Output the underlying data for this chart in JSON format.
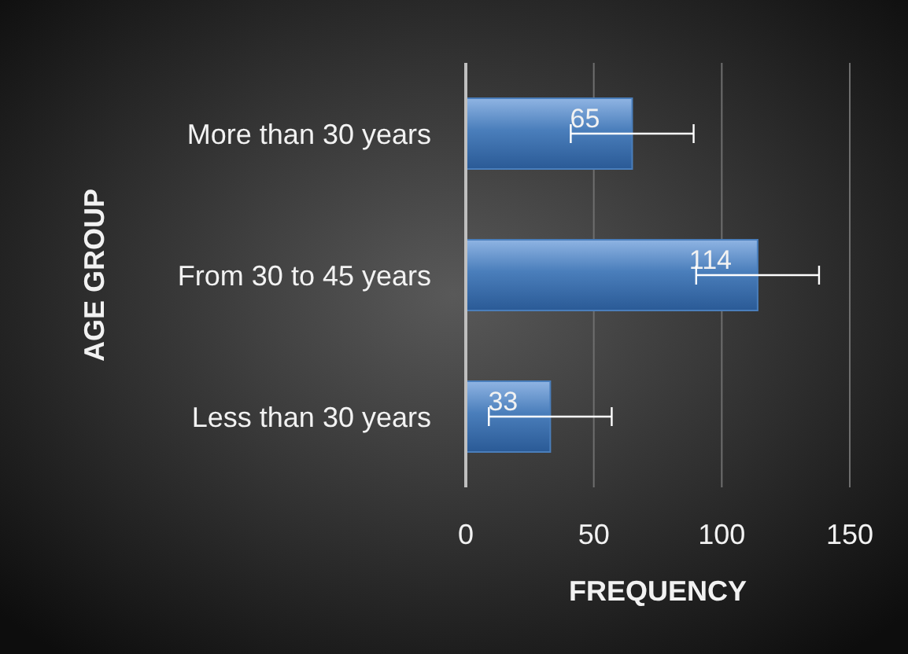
{
  "chart_data": {
    "type": "bar",
    "orientation": "horizontal",
    "categories": [
      "More than 30 years",
      "From 30 to 45 years",
      "Less than 30 years"
    ],
    "values": [
      65,
      114,
      33
    ],
    "errors": [
      24,
      24,
      24
    ],
    "color": "#4a7ebb",
    "data_labels": true,
    "xlim": [
      0,
      150
    ],
    "xticks": [
      0,
      50,
      100,
      150
    ],
    "grid": "x",
    "xlabel": "FREQUENCY",
    "ylabel": "AGE GROUP"
  }
}
